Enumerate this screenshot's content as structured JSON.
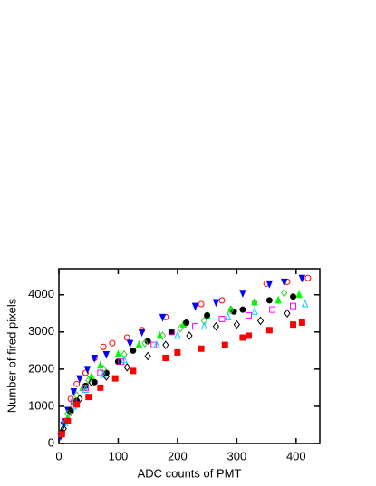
{
  "chart_data": {
    "type": "scatter",
    "x_label": "ADC counts of PMT",
    "y_label": "Number of fired pixels",
    "xlim": [
      0,
      440
    ],
    "ylim": [
      0,
      4700
    ],
    "xticks": [
      0,
      100,
      200,
      300,
      400
    ],
    "yticks": [
      0,
      1000,
      2000,
      3000,
      4000
    ],
    "grid": false,
    "series": [
      {
        "color": "#ff0000",
        "marker": "circle",
        "filled": false,
        "x": [
          5,
          10,
          20,
          30,
          45,
          60,
          75,
          90,
          115,
          140,
          180,
          240,
          275,
          350,
          385,
          420
        ],
        "values": [
          300,
          600,
          1200,
          1600,
          1900,
          2300,
          2600,
          2700,
          2850,
          3050,
          3400,
          3750,
          3850,
          4300,
          4350,
          4450
        ]
      },
      {
        "color": "#0000ff",
        "marker": "triangle-down",
        "filled": true,
        "x": [
          3,
          8,
          15,
          25,
          35,
          48,
          60,
          80,
          120,
          140,
          175,
          230,
          265,
          310,
          355,
          380,
          410
        ],
        "values": [
          200,
          500,
          900,
          1400,
          1750,
          2000,
          2300,
          2400,
          2700,
          3000,
          3400,
          3700,
          3800,
          4050,
          4300,
          4350,
          4450
        ]
      },
      {
        "color": "#00ff00",
        "marker": "triangle-up",
        "filled": true,
        "x": [
          5,
          15,
          25,
          40,
          55,
          70,
          100,
          135,
          170,
          210,
          250,
          290,
          330,
          370,
          405
        ],
        "values": [
          300,
          700,
          1100,
          1500,
          1800,
          2100,
          2400,
          2650,
          2900,
          3200,
          3450,
          3600,
          3800,
          3850,
          4000
        ]
      },
      {
        "color": "#000000",
        "marker": "circle",
        "filled": true,
        "x": [
          5,
          10,
          20,
          30,
          45,
          60,
          80,
          100,
          125,
          150,
          190,
          215,
          250,
          295,
          310,
          355,
          395
        ],
        "values": [
          300,
          600,
          900,
          1150,
          1550,
          1650,
          1900,
          2200,
          2500,
          2750,
          3000,
          3250,
          3450,
          3550,
          3600,
          3850,
          3950
        ]
      },
      {
        "color": "#33cc33",
        "marker": "diamond",
        "filled": false,
        "x": [
          15,
          30,
          50,
          75,
          110,
          145,
          175,
          205,
          245,
          290,
          330,
          380
        ],
        "values": [
          800,
          1300,
          1700,
          2000,
          2400,
          2700,
          2900,
          3100,
          3300,
          3600,
          3800,
          4050
        ]
      },
      {
        "color": "#ff00ff",
        "marker": "square",
        "filled": false,
        "x": [
          10,
          25,
          45,
          70,
          105,
          160,
          190,
          230,
          275,
          320,
          360,
          395
        ],
        "values": [
          600,
          1100,
          1500,
          1900,
          2200,
          2650,
          3000,
          3150,
          3350,
          3450,
          3600,
          3700
        ]
      },
      {
        "color": "#00ccff",
        "marker": "triangle-up",
        "filled": false,
        "x": [
          10,
          25,
          45,
          75,
          110,
          165,
          200,
          245,
          285,
          330,
          415
        ],
        "values": [
          550,
          1000,
          1450,
          1850,
          2250,
          2650,
          2900,
          3150,
          3400,
          3550,
          3750
        ]
      },
      {
        "color": "#000000",
        "marker": "diamond",
        "filled": false,
        "x": [
          8,
          20,
          35,
          55,
          80,
          115,
          150,
          180,
          220,
          265,
          300,
          340,
          385
        ],
        "values": [
          400,
          850,
          1200,
          1650,
          1800,
          2050,
          2350,
          2650,
          2900,
          3150,
          3200,
          3300,
          3500
        ]
      },
      {
        "color": "#ff0000",
        "marker": "square",
        "filled": true,
        "x": [
          5,
          15,
          30,
          50,
          70,
          95,
          125,
          180,
          200,
          240,
          280,
          310,
          320,
          355,
          395,
          410
        ],
        "values": [
          250,
          600,
          1050,
          1250,
          1500,
          1750,
          1950,
          2300,
          2450,
          2550,
          2650,
          2850,
          2900,
          3050,
          3200,
          3250
        ]
      }
    ]
  }
}
